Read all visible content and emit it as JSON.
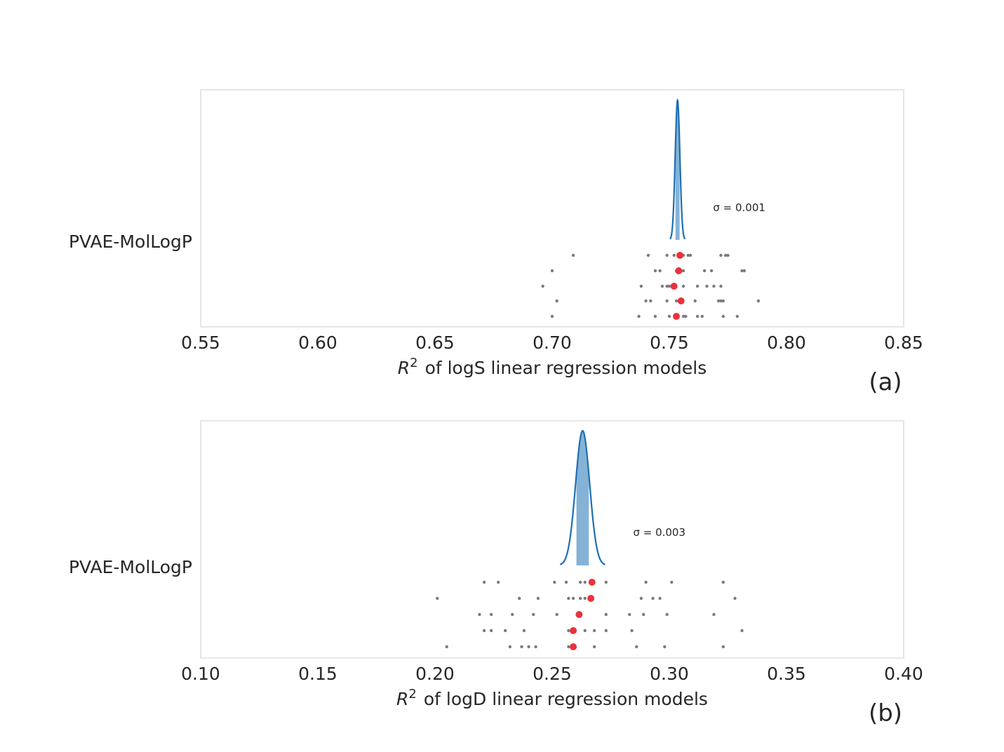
{
  "chart_data": [
    {
      "type": "scatter",
      "panel_label": "(a)",
      "category_label": "PVAE-MolLogP",
      "xlabel_var": "R",
      "xlabel_sup": "2",
      "xlabel_rest": "of logS linear regression models",
      "xlim": [
        0.55,
        0.85
      ],
      "xticks": [
        "0.55",
        "0.60",
        "0.65",
        "0.70",
        "0.75",
        "0.80",
        "0.85"
      ],
      "xtick_values": [
        0.55,
        0.6,
        0.65,
        0.7,
        0.75,
        0.8,
        0.85
      ],
      "distribution": {
        "mean": 0.7535,
        "sigma": 0.001
      },
      "sigma_text": "σ = 0.001",
      "means": [
        0.7545,
        0.754,
        0.752,
        0.755,
        0.753
      ],
      "rows": [
        [
          0.709,
          0.741,
          0.749,
          0.752,
          0.754,
          0.756,
          0.758,
          0.759,
          0.772,
          0.774,
          0.775
        ],
        [
          0.7,
          0.744,
          0.746,
          0.753,
          0.755,
          0.755,
          0.756,
          0.765,
          0.768,
          0.781,
          0.782
        ],
        [
          0.696,
          0.738,
          0.747,
          0.749,
          0.75,
          0.752,
          0.756,
          0.762,
          0.766,
          0.769,
          0.772
        ],
        [
          0.702,
          0.74,
          0.742,
          0.749,
          0.753,
          0.755,
          0.761,
          0.771,
          0.772,
          0.773,
          0.788
        ],
        [
          0.7,
          0.737,
          0.744,
          0.75,
          0.753,
          0.756,
          0.757,
          0.762,
          0.764,
          0.773,
          0.779
        ]
      ]
    },
    {
      "type": "scatter",
      "panel_label": "(b)",
      "category_label": "PVAE-MolLogP",
      "xlabel_var": "R",
      "xlabel_sup": "2",
      "xlabel_rest": "of logD linear regression models",
      "xlim": [
        0.1,
        0.4
      ],
      "xticks": [
        "0.10",
        "0.15",
        "0.20",
        "0.25",
        "0.30",
        "0.35",
        "0.40"
      ],
      "xtick_values": [
        0.1,
        0.15,
        0.2,
        0.25,
        0.3,
        0.35,
        0.4
      ],
      "distribution": {
        "mean": 0.263,
        "sigma": 0.003
      },
      "sigma_text": "σ = 0.003",
      "means": [
        0.267,
        0.2665,
        0.2615,
        0.259,
        0.259
      ],
      "rows": [
        [
          0.221,
          0.227,
          0.251,
          0.256,
          0.262,
          0.264,
          0.273,
          0.29,
          0.301,
          0.323
        ],
        [
          0.201,
          0.236,
          0.244,
          0.257,
          0.259,
          0.262,
          0.264,
          0.288,
          0.293,
          0.296,
          0.328
        ],
        [
          0.219,
          0.224,
          0.233,
          0.242,
          0.252,
          0.262,
          0.273,
          0.283,
          0.289,
          0.299,
          0.319
        ],
        [
          0.221,
          0.224,
          0.23,
          0.238,
          0.257,
          0.264,
          0.268,
          0.273,
          0.284,
          0.331
        ],
        [
          0.205,
          0.232,
          0.237,
          0.24,
          0.243,
          0.257,
          0.268,
          0.286,
          0.298,
          0.323
        ]
      ]
    }
  ]
}
